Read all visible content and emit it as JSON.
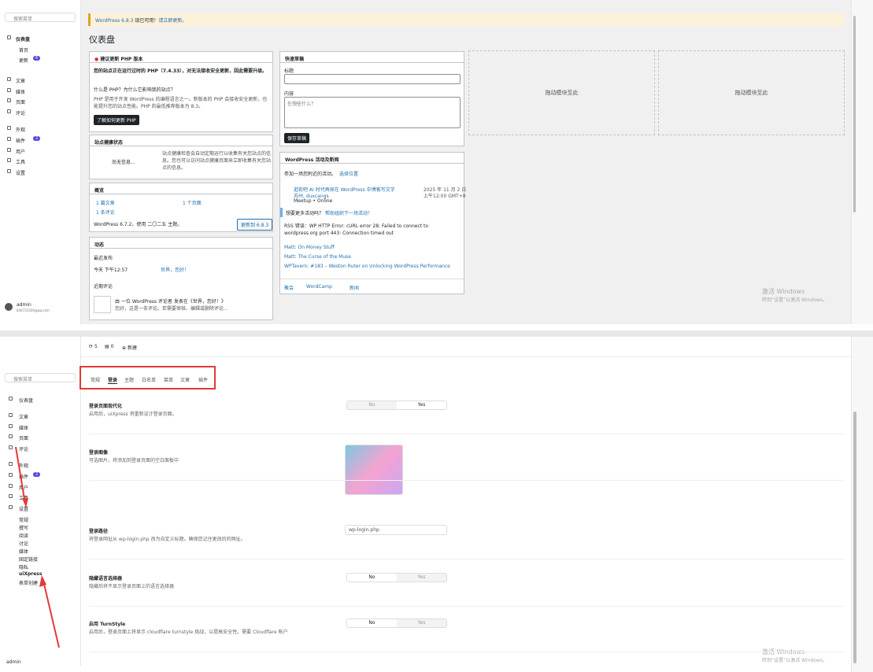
{
  "top": {
    "sidebar": {
      "search": "搜索菜单",
      "menu": [
        "仪表盘",
        "首页",
        "更新",
        "文章",
        "媒体",
        "页面",
        "评论",
        "外观",
        "插件",
        "用户",
        "工具",
        "设置"
      ],
      "updates_badge": 6,
      "plugins_badge": 2,
      "user": "admin",
      "email": "836731500@qq.com"
    },
    "notice": {
      "version": "WordPress 6.8.3",
      "text": "现已可用！",
      "link": "请立即更新。"
    },
    "title": "仪表盘",
    "php": {
      "title": "建议更新 PHP 版本",
      "warning": "您的站点正在运行过时的 PHP（7.4.33），对无法接收安全更新，因此需要升级。",
      "question": "什么是 PHP？为什么它影响我的站点？",
      "body": "PHP 是用于开发 WordPress 的编程语言之一。新版本的 PHP 会接收安全更新，也能提升您的站点性能。PHP 的最低推荐版本为 8.3。",
      "button": "了解如何更新 PHP"
    },
    "health": {
      "title": "站点健康状态",
      "status": "尚无信息…",
      "body": "站点健康检查会自动定期运行以收集有关您站点的信息。您也可以访问站点健康页面来立即收集有关您站点的信息。"
    },
    "glance": {
      "title": "概览",
      "posts": "1 篇文章",
      "pages": "1 个页面",
      "comments": "1 条评论",
      "version": "WordPress 6.7.2，使用 二〇二五 主题。",
      "button": "更新到 6.8.3"
    },
    "activity": {
      "title": "动态",
      "recent": "最近发布",
      "time": "今天 下午12:57",
      "post": "世界，您好！",
      "comments_title": "近期评论",
      "comment_by": "由 一位 WordPress 评论者 发表在《世界，您好！》",
      "comment": "您好，这是一条评论。若需要审核、编辑或删除评论…"
    },
    "draft": {
      "title": "快速草稿",
      "label_title": "标题",
      "label_content": "内容",
      "placeholder": "在想些什么？",
      "button": "保存草稿"
    },
    "events": {
      "title": "WordPress 活动及新闻",
      "intro": "参加一场您附近的活动。",
      "location": "选择位置",
      "event_title": "逛街吧 AI 时代再探在 WordPress 中博客写文字",
      "event_host": "苏州, duxcangs",
      "event_type": "Meetup • Online",
      "event_date": "2025 年 11 月 2 日",
      "event_time": "上午12:00 GMT+8",
      "more": "想要更多活动吗？",
      "help": "帮助组织下一场活动！",
      "rss_error": "RSS 错误：WP HTTP Error: cURL error 28: Failed to connect to wordpress.org port 443: Connection timed out",
      "news": [
        "Matt: On Money Stuff",
        "Matt: The Curse of the Muse",
        "WPTavern: #183 – Weston Ruter on Unlocking WordPress Performance"
      ],
      "footer": [
        "聚会",
        "WordCamp",
        "新闻"
      ]
    },
    "dropzone": "拖动模块至此",
    "watermark": {
      "title": "激活 Windows",
      "text": "转到“设置”以激活 Windows。"
    }
  },
  "bottom": {
    "sidebar": {
      "search": "搜索菜单",
      "menu": [
        "仪表盘",
        "文章",
        "媒体",
        "页面",
        "评论",
        "外观",
        "插件",
        "用户",
        "工具",
        "设置"
      ],
      "plugins_badge": 2,
      "submenu": [
        "常规",
        "撰写",
        "阅读",
        "讨论",
        "媒体",
        "固定链接",
        "隐私",
        "uiXpress",
        "表单创建"
      ],
      "user": "admin"
    },
    "toolbar": {
      "updates": 5,
      "comments": 0,
      "new": "新建"
    },
    "tabs": [
      "常规",
      "登录",
      "主题",
      "白名单",
      "菜单",
      "文章",
      "插件"
    ],
    "settings": [
      {
        "title": "登录页面现代化",
        "desc": "启用后，uiXpress 将重新设计登录页面。",
        "options": [
          "No",
          "Yes"
        ],
        "selected": "Yes"
      },
      {
        "title": "登录图像",
        "desc": "可选图片，将添加到登录页面的空白面板中"
      },
      {
        "title": "登录路径",
        "desc": "将登录网址从 wp-login.php 改为自定义标题。确保您记住更改后的网址。",
        "input": "wp-login.php"
      },
      {
        "title": "隐藏语言选择器",
        "desc": "隐藏后将不显示登录页面上的语言选择器",
        "options": [
          "No",
          "Yes"
        ],
        "selected": "No"
      },
      {
        "title": "启用 TurnStyle",
        "desc": "启用后，登录页面上将显示 cloudflare turnstyle 挑战，以提高安全性。需要 Cloudflare 帐户",
        "options": [
          "No",
          "Yes"
        ],
        "selected": "No"
      }
    ],
    "watermark": {
      "title": "激活 Windows",
      "text": "转到“设置”以激活 Windows。"
    }
  }
}
